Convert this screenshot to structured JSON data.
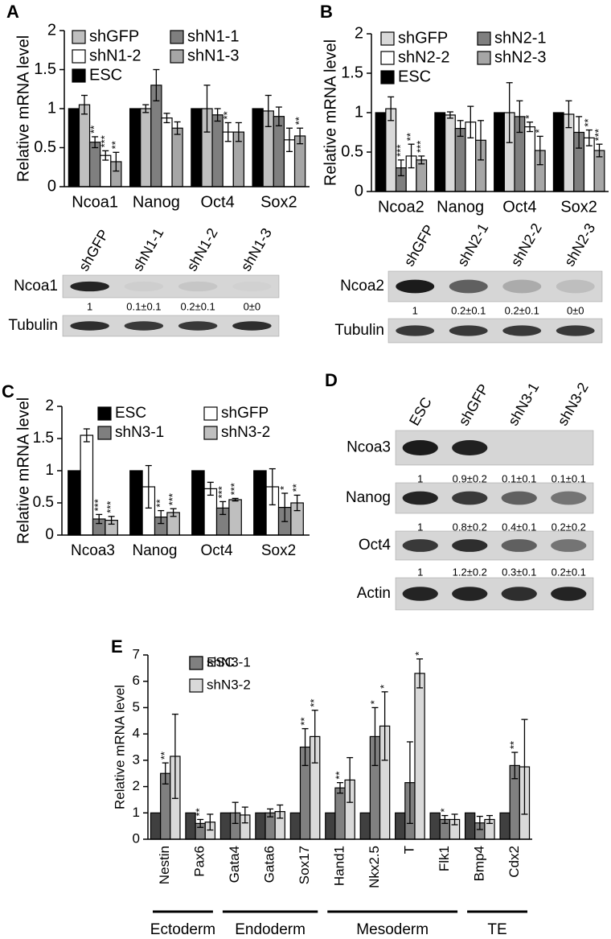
{
  "chart_data": [
    {
      "type": "bar",
      "panel": "A",
      "y_label": "Relative mRNA level",
      "categories": [
        "Ncoa1",
        "Nanog",
        "Oct4",
        "Sox2"
      ],
      "ylim": [
        0,
        2
      ],
      "yticks": [
        0,
        0.5,
        1,
        1.5,
        2
      ],
      "series": [
        {
          "name": "ESC",
          "color": "#000000",
          "values": [
            1,
            1,
            1,
            1
          ]
        },
        {
          "name": "shGFP",
          "color": "#bfbfbf",
          "values": [
            1.05,
            1.0,
            1.0,
            0.97
          ],
          "errors": [
            0.12,
            0.05,
            0.3,
            0.2
          ]
        },
        {
          "name": "shN1-1",
          "color": "#7f7f7f",
          "values": [
            0.57,
            1.3,
            0.92,
            0.9
          ],
          "errors": [
            0.07,
            0.2,
            0.08,
            0.12
          ],
          "stars": [
            "**",
            null,
            null,
            null
          ]
        },
        {
          "name": "shN1-2",
          "color": "#ffffff",
          "values": [
            0.4,
            0.88,
            0.7,
            0.6
          ],
          "errors": [
            0.06,
            0.06,
            0.12,
            0.15
          ],
          "stars": [
            "***",
            null,
            "**",
            null
          ]
        },
        {
          "name": "shN1-3",
          "color": "#a6a6a6",
          "values": [
            0.32,
            0.75,
            0.7,
            0.65
          ],
          "errors": [
            0.12,
            0.08,
            0.12,
            0.1
          ],
          "stars": [
            "**",
            null,
            null,
            "**"
          ]
        }
      ]
    },
    {
      "type": "bar",
      "panel": "B",
      "y_label": "Relative mRNA level",
      "categories": [
        "Ncoa2",
        "Nanog",
        "Oct4",
        "Sox2"
      ],
      "ylim": [
        0,
        2
      ],
      "yticks": [
        0,
        0.5,
        1,
        1.5,
        2
      ],
      "series": [
        {
          "name": "ESC",
          "color": "#000000",
          "values": [
            1,
            1,
            1,
            1
          ]
        },
        {
          "name": "shGFP",
          "color": "#d9d9d9",
          "values": [
            1.05,
            0.97,
            1.0,
            0.98
          ],
          "errors": [
            0.15,
            0.04,
            0.38,
            0.17
          ]
        },
        {
          "name": "shN2-1",
          "color": "#7f7f7f",
          "values": [
            0.3,
            0.8,
            0.95,
            0.75
          ],
          "errors": [
            0.1,
            0.1,
            0.2,
            0.2
          ],
          "stars": [
            "***",
            null,
            null,
            null
          ]
        },
        {
          "name": "shN2-2",
          "color": "#ffffff",
          "values": [
            0.45,
            0.88,
            0.82,
            0.68
          ],
          "errors": [
            0.15,
            0.2,
            0.06,
            0.1
          ],
          "stars": [
            "**",
            null,
            "*",
            "**"
          ]
        },
        {
          "name": "shN2-3",
          "color": "#a6a6a6",
          "values": [
            0.4,
            0.65,
            0.52,
            0.52
          ],
          "errors": [
            0.05,
            0.25,
            0.18,
            0.08
          ],
          "stars": [
            "***",
            null,
            "*",
            "***"
          ]
        }
      ]
    },
    {
      "type": "bar",
      "panel": "C",
      "y_label": "Relative mRNA level",
      "categories": [
        "Ncoa3",
        "Nanog",
        "Oct4",
        "Sox2"
      ],
      "ylim": [
        0,
        2
      ],
      "yticks": [
        0,
        0.5,
        1,
        1.5,
        2
      ],
      "series": [
        {
          "name": "ESC",
          "color": "#000000",
          "values": [
            1,
            1,
            1,
            1
          ]
        },
        {
          "name": "shGFP",
          "color": "#ffffff",
          "values": [
            1.55,
            0.75,
            0.72,
            0.75
          ],
          "errors": [
            0.1,
            0.33,
            0.1,
            0.28
          ]
        },
        {
          "name": "shN3-1",
          "color": "#7f7f7f",
          "values": [
            0.25,
            0.28,
            0.42,
            0.43
          ],
          "errors": [
            0.07,
            0.1,
            0.1,
            0.22
          ],
          "stars": [
            "***",
            "**",
            "***",
            "*"
          ]
        },
        {
          "name": "shN3-2",
          "color": "#bfbfbf",
          "values": [
            0.23,
            0.35,
            0.55,
            0.5
          ],
          "errors": [
            0.06,
            0.06,
            0.02,
            0.12
          ],
          "stars": [
            "***",
            "***",
            "***",
            "**"
          ]
        }
      ]
    },
    {
      "type": "bar",
      "panel": "E",
      "y_label": "Relative mRNA level",
      "categories": [
        "Nestin",
        "Pax6",
        "Gata4",
        "Gata6",
        "Sox17",
        "Hand1",
        "Nkx2.5",
        "T",
        "Flk1",
        "Bmp4",
        "Cdx2"
      ],
      "category_groups": [
        "Ectoderm",
        "Ectoderm",
        "Endoderm",
        "Endoderm",
        "Endoderm",
        "Mesoderm",
        "Mesoderm",
        "Mesoderm",
        "Mesoderm",
        "TE",
        "TE"
      ],
      "ylim": [
        0,
        7
      ],
      "yticks": [
        0,
        1,
        2,
        3,
        4,
        5,
        6,
        7
      ],
      "series": [
        {
          "name": "ESC",
          "color": "#404040",
          "values": [
            1,
            1,
            1,
            1,
            1,
            1,
            1,
            1,
            1,
            1,
            1
          ]
        },
        {
          "name": "shN3-1",
          "color": "#808080",
          "values": [
            2.5,
            0.6,
            1.0,
            1.0,
            3.5,
            1.95,
            3.9,
            2.15,
            0.75,
            0.62,
            2.8
          ],
          "errors": [
            0.4,
            0.15,
            0.4,
            0.15,
            0.7,
            0.2,
            1.1,
            1.55,
            0.15,
            0.25,
            0.5
          ],
          "stars": [
            "**",
            "**",
            null,
            null,
            "**",
            "**",
            "*",
            null,
            "*",
            null,
            "**"
          ]
        },
        {
          "name": "shN3-2",
          "color": "#d9d9d9",
          "values": [
            3.15,
            0.65,
            0.92,
            1.05,
            3.9,
            2.25,
            4.3,
            6.3,
            0.75,
            0.75,
            2.75
          ],
          "errors": [
            1.6,
            0.3,
            0.3,
            0.25,
            1.0,
            0.85,
            1.3,
            0.55,
            0.2,
            0.15,
            1.8
          ],
          "stars": [
            null,
            null,
            null,
            null,
            "**",
            null,
            "*",
            "*",
            null,
            null,
            null
          ]
        }
      ]
    }
  ],
  "blots": [
    {
      "lanes": [
        "shGFP",
        "shN1-1",
        "shN1-2",
        "shN1-3"
      ],
      "rows": [
        {
          "label": "Ncoa1",
          "quantification": [
            "1",
            "0.1±0.1",
            "0.2±0.1",
            "0±0"
          ]
        },
        {
          "label": "Tubulin"
        }
      ]
    },
    {
      "lanes": [
        "shGFP",
        "shN2-1",
        "shN2-2",
        "shN2-3"
      ],
      "rows": [
        {
          "label": "Ncoa2",
          "quantification": [
            "1",
            "0.2±0.1",
            "0.2±0.1",
            "0±0"
          ]
        },
        {
          "label": "Tubulin"
        }
      ]
    },
    {
      "panel": "D",
      "lanes": [
        "ESC",
        "shGFP",
        "shN3-1",
        "shN3-2"
      ],
      "rows": [
        {
          "label": "Ncoa3",
          "quantification": [
            "1",
            "0.9±0.2",
            "0.1±0.1",
            "0.1±0.1"
          ]
        },
        {
          "label": "Nanog",
          "quantification": [
            "1",
            "0.8±0.2",
            "0.4±0.1",
            "0.2±0.2"
          ]
        },
        {
          "label": "Oct4",
          "quantification": [
            "1",
            "1.2±0.2",
            "0.3±0.1",
            "0.2±0.1"
          ]
        },
        {
          "label": "Actin"
        }
      ]
    }
  ]
}
